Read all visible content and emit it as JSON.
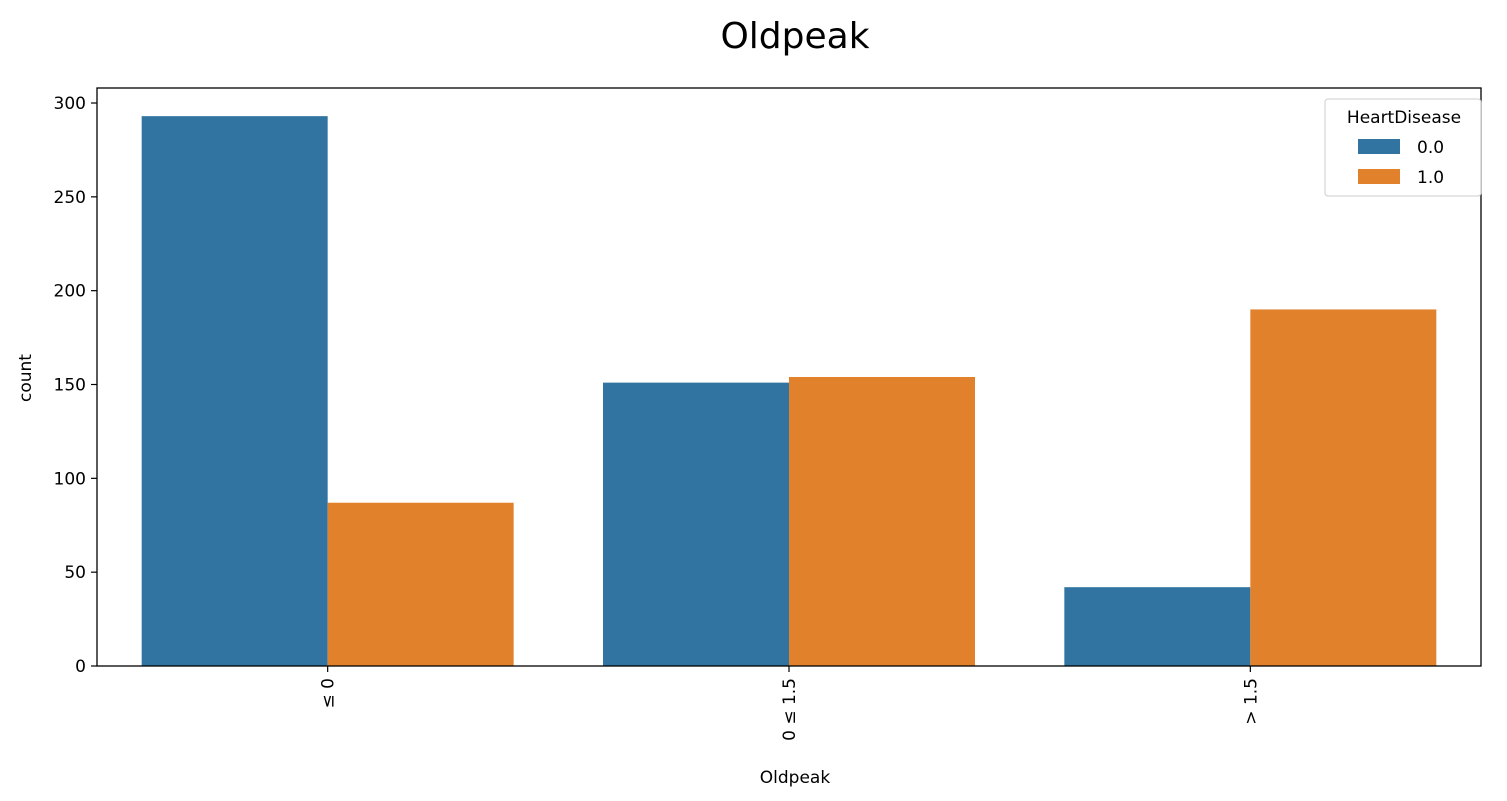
{
  "chart_data": {
    "type": "bar",
    "title": "Oldpeak",
    "xlabel": "Oldpeak",
    "ylabel": "count",
    "categories": [
      "≤ 0",
      "0 ≤ 1.5",
      "> 1.5"
    ],
    "series": [
      {
        "name": "0.0",
        "color": "#3274a1",
        "values": [
          293,
          151,
          42
        ]
      },
      {
        "name": "1.0",
        "color": "#e1812c",
        "values": [
          87,
          154,
          190
        ]
      }
    ],
    "ylim": [
      0,
      308
    ],
    "yticks": [
      0,
      50,
      100,
      150,
      200,
      250,
      300
    ],
    "legend": {
      "title": "HeartDisease",
      "position": "top-right"
    },
    "grid": false
  }
}
